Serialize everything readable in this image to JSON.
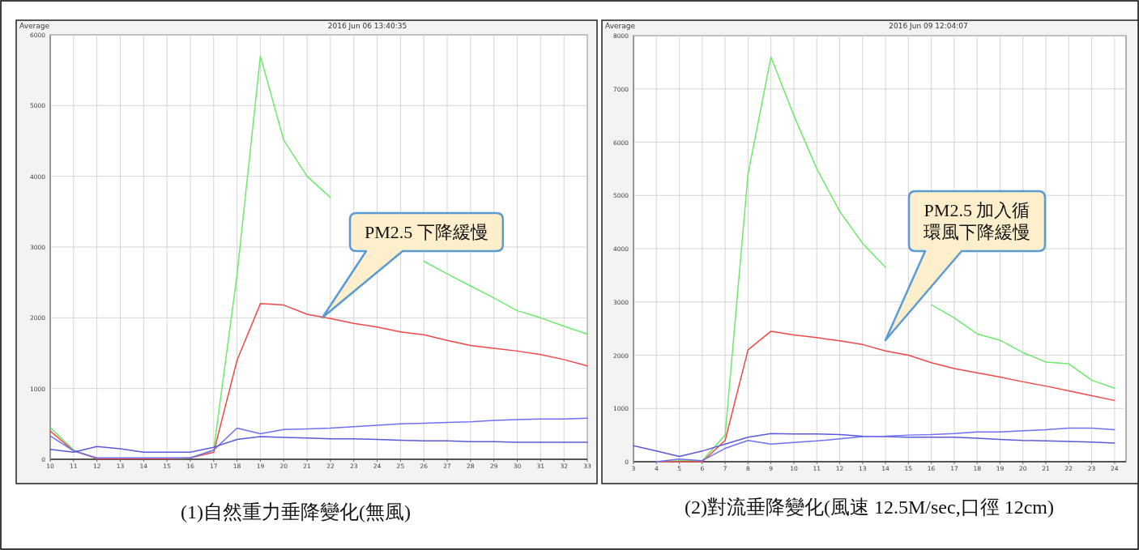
{
  "chart_data": [
    {
      "type": "line",
      "title": "(1)自然重力垂降變化(無風)",
      "x": [
        10,
        11,
        12,
        13,
        14,
        15,
        16,
        17,
        18,
        19,
        20,
        21,
        22,
        23,
        24,
        25,
        26,
        27,
        28,
        29,
        30,
        31,
        32,
        33
      ],
      "xlim": [
        10,
        33
      ],
      "ylim": [
        0,
        6000
      ],
      "xticks": [
        10,
        11,
        12,
        13,
        14,
        15,
        16,
        17,
        18,
        19,
        20,
        21,
        22,
        23,
        24,
        25,
        26,
        27,
        28,
        29,
        30,
        31,
        32,
        33
      ],
      "yticks": [
        0,
        1000,
        2000,
        3000,
        4000,
        5000,
        6000
      ],
      "grid": true,
      "series": [
        {
          "color": "#6ee86e",
          "values": [
            450,
            130,
            10,
            10,
            10,
            10,
            20,
            130,
            2610,
            5700,
            4510,
            4000,
            3700,
            null,
            null,
            null,
            2800,
            2620,
            2450,
            2280,
            2100,
            2000,
            1880,
            1770
          ]
        },
        {
          "color": "#f04848",
          "values": [
            400,
            120,
            10,
            10,
            10,
            10,
            20,
            100,
            1400,
            2200,
            2180,
            2050,
            1990,
            1920,
            1870,
            1800,
            1760,
            1680,
            1610,
            1570,
            1530,
            1480,
            1410,
            1320
          ]
        },
        {
          "color": "#7070f4",
          "values": [
            330,
            120,
            20,
            20,
            20,
            20,
            20,
            130,
            440,
            360,
            420,
            430,
            440,
            460,
            480,
            500,
            510,
            520,
            530,
            550,
            560,
            570,
            570,
            580
          ]
        },
        {
          "color": "#5a5ad8",
          "values": [
            140,
            100,
            180,
            150,
            100,
            100,
            100,
            170,
            280,
            320,
            310,
            300,
            290,
            290,
            280,
            270,
            260,
            260,
            250,
            250,
            240,
            240,
            240,
            240
          ]
        }
      ],
      "annotations": [
        "Average",
        "2016 Jun 06 13:40:35",
        "PM2.5 下降緩慢"
      ]
    },
    {
      "type": "line",
      "title": "(2)對流垂降變化(風速 12.5M/sec,口徑 12cm)",
      "x": [
        3,
        4,
        5,
        6,
        7,
        8,
        9,
        10,
        11,
        12,
        13,
        14,
        15,
        16,
        17,
        18,
        19,
        20,
        21,
        22,
        23,
        24
      ],
      "xlim": [
        3,
        24.5
      ],
      "ylim": [
        0,
        8000
      ],
      "xticks": [
        3,
        4,
        5,
        6,
        7,
        8,
        9,
        10,
        11,
        12,
        13,
        14,
        15,
        16,
        17,
        18,
        19,
        20,
        21,
        22,
        23,
        24
      ],
      "yticks": [
        0,
        1000,
        2000,
        3000,
        4000,
        5000,
        6000,
        7000,
        8000
      ],
      "grid": true,
      "series": [
        {
          "color": "#6ee86e",
          "values": [
            null,
            0,
            20,
            20,
            500,
            5400,
            7600,
            6500,
            5500,
            4700,
            4100,
            3650,
            null,
            2950,
            2700,
            2400,
            2280,
            2050,
            1870,
            1840,
            1530,
            1380
          ]
        },
        {
          "color": "#f04848",
          "values": [
            null,
            0,
            0,
            0,
            400,
            2100,
            2450,
            2380,
            2330,
            2270,
            2200,
            2080,
            2000,
            1860,
            1750,
            1670,
            1590,
            1500,
            1420,
            1330,
            1240,
            1150
          ]
        },
        {
          "color": "#5a5ad8",
          "values": [
            300,
            200,
            100,
            200,
            330,
            460,
            530,
            520,
            520,
            510,
            480,
            470,
            460,
            460,
            460,
            440,
            420,
            400,
            390,
            380,
            370,
            350
          ]
        },
        {
          "color": "#7070f4",
          "values": [
            null,
            0,
            50,
            20,
            250,
            400,
            330,
            360,
            390,
            430,
            470,
            480,
            500,
            510,
            530,
            560,
            560,
            580,
            600,
            630,
            630,
            600
          ]
        }
      ],
      "annotations": [
        "Average",
        "2016 Jun 09 12:04:07",
        "PM2.5 加入循環風下降緩慢"
      ]
    }
  ]
}
